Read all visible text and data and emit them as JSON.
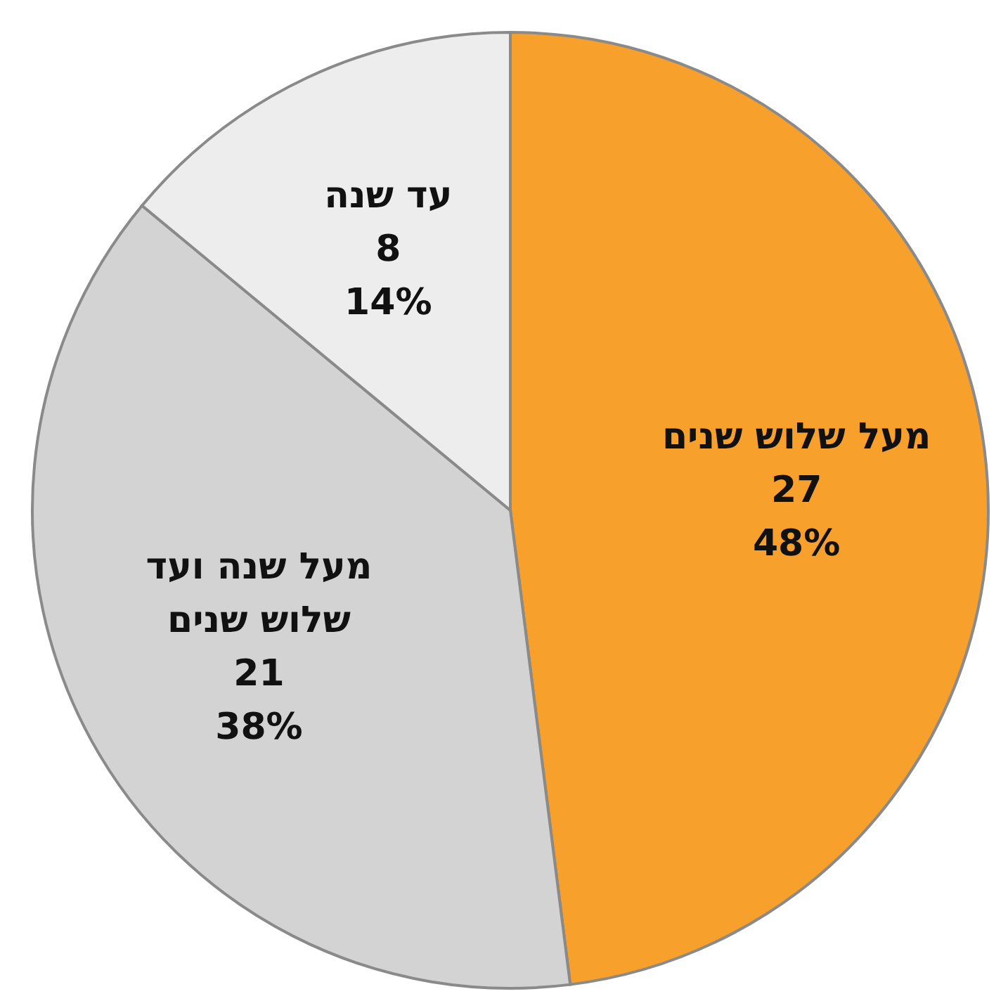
{
  "chart_data": {
    "type": "pie",
    "categories": [
      "מעל שלוש שנים",
      "מעל שנה ועד שלוש שנים",
      "עד שנה"
    ],
    "values": [
      48,
      38,
      14
    ],
    "colors": [
      "#f7a02c",
      "#d3d3d3",
      "#ededed"
    ],
    "value_labels": [
      "27\n48%",
      "21\n38%",
      "8\n14%"
    ],
    "legend": false
  }
}
